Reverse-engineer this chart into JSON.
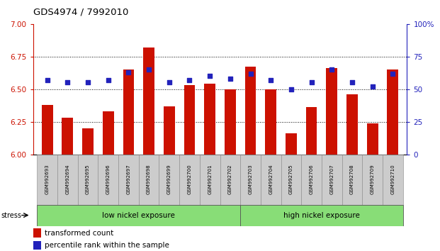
{
  "title": "GDS4974 / 7992010",
  "samples": [
    "GSM992693",
    "GSM992694",
    "GSM992695",
    "GSM992696",
    "GSM992697",
    "GSM992698",
    "GSM992699",
    "GSM992700",
    "GSM992701",
    "GSM992702",
    "GSM992703",
    "GSM992704",
    "GSM992705",
    "GSM992706",
    "GSM992707",
    "GSM992708",
    "GSM992709",
    "GSM992710"
  ],
  "bar_values": [
    6.38,
    6.28,
    6.2,
    6.33,
    6.65,
    6.82,
    6.37,
    6.53,
    6.54,
    6.5,
    6.67,
    6.5,
    6.16,
    6.36,
    6.66,
    6.46,
    6.24,
    6.65
  ],
  "dot_values": [
    57,
    55,
    55,
    57,
    63,
    65,
    55,
    57,
    60,
    58,
    62,
    57,
    50,
    55,
    65,
    55,
    52,
    62
  ],
  "bar_color": "#cc1100",
  "dot_color": "#2222bb",
  "ylim_left": [
    6.0,
    7.0
  ],
  "ylim_right": [
    0,
    100
  ],
  "yticks_left": [
    6.0,
    6.25,
    6.5,
    6.75,
    7.0
  ],
  "yticks_right": [
    0,
    25,
    50,
    75,
    100
  ],
  "grid_lines": [
    6.25,
    6.5,
    6.75
  ],
  "group1_label": "low nickel exposure",
  "group2_label": "high nickel exposure",
  "n_group1": 10,
  "stress_label": "stress",
  "legend_bar_label": "transformed count",
  "legend_dot_label": "percentile rank within the sample",
  "bar_baseline": 6.0,
  "group_bg_color": "#88dd77",
  "tick_label_bg": "#cccccc"
}
